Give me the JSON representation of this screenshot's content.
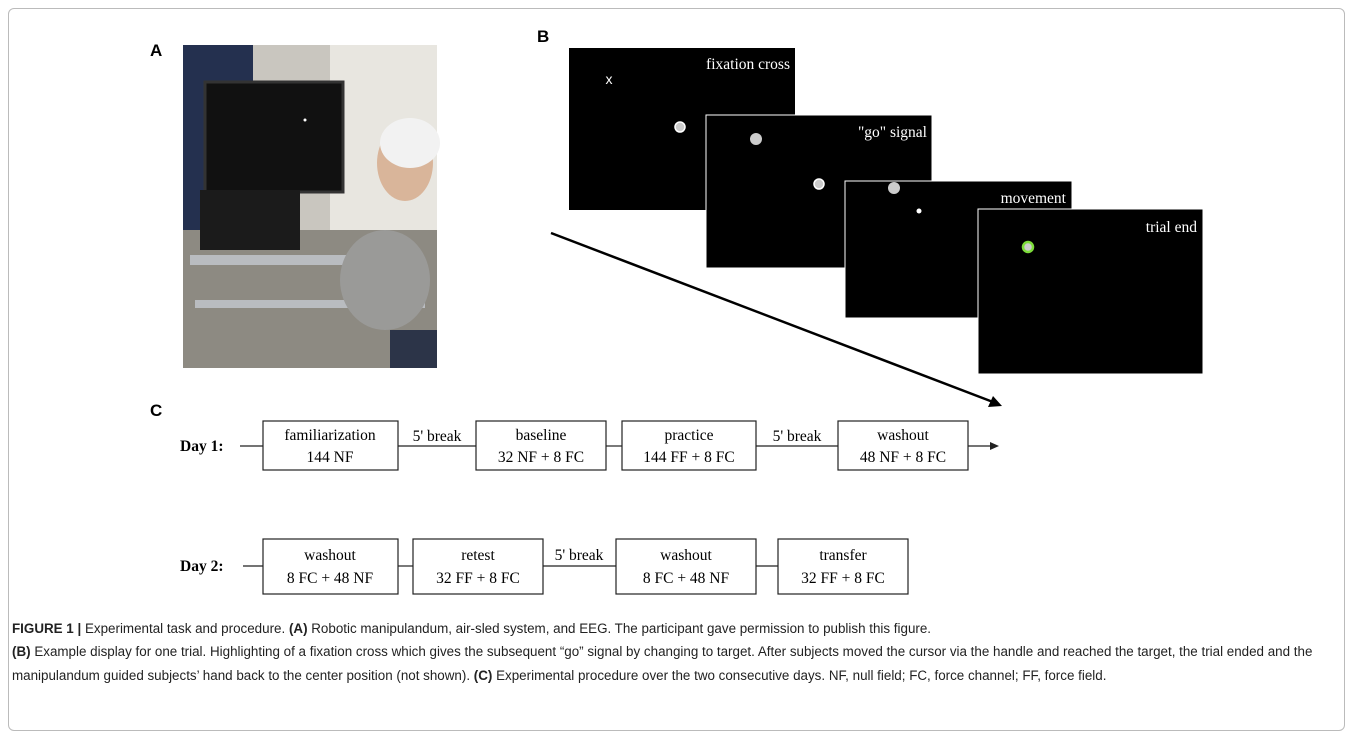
{
  "panel_a": {
    "label": "A"
  },
  "panel_b": {
    "label": "B",
    "screens": [
      {
        "text": "fixation cross",
        "marker": "x"
      },
      {
        "text": "\"go\" signal"
      },
      {
        "text": "movement"
      },
      {
        "text": "trial end"
      }
    ]
  },
  "panel_c": {
    "label": "C",
    "day1": {
      "label": "Day 1:",
      "blocks": [
        {
          "name": "familiarization",
          "trials": "144 NF"
        },
        {
          "name": "baseline",
          "trials": "32 NF + 8 FC"
        },
        {
          "name": "practice",
          "trials": "144 FF + 8 FC"
        },
        {
          "name": "washout",
          "trials": "48 NF + 8 FC"
        }
      ],
      "breaks": [
        "5' break",
        "5' break"
      ]
    },
    "day2": {
      "label": "Day 2:",
      "blocks": [
        {
          "name": "washout",
          "trials": "8 FC + 48 NF"
        },
        {
          "name": "retest",
          "trials": "32 FF + 8 FC"
        },
        {
          "name": "washout",
          "trials": "8 FC + 48 NF"
        },
        {
          "name": "transfer",
          "trials": "32 FF + 8 FC"
        }
      ],
      "breaks": [
        "5' break"
      ]
    }
  },
  "caption": {
    "figure_label": "FIGURE 1 |",
    "intro": "Experimental task and procedure.",
    "a_label": "(A)",
    "a_text": "Robotic manipulandum, air-sled system, and EEG. The participant gave permission to publish this figure.",
    "b_label": "(B)",
    "b_text": "Example display for one trial. Highlighting of a fixation cross which gives the subsequent “go” signal by changing to target. After subjects moved the cursor via the handle and reached the target, the trial ended and the manipulandum guided subjects’ hand back to the center position (not shown).",
    "c_label": "(C)",
    "c_text": "Experimental procedure over the two consecutive days. NF, null field; FC, force channel; FF, force field."
  }
}
